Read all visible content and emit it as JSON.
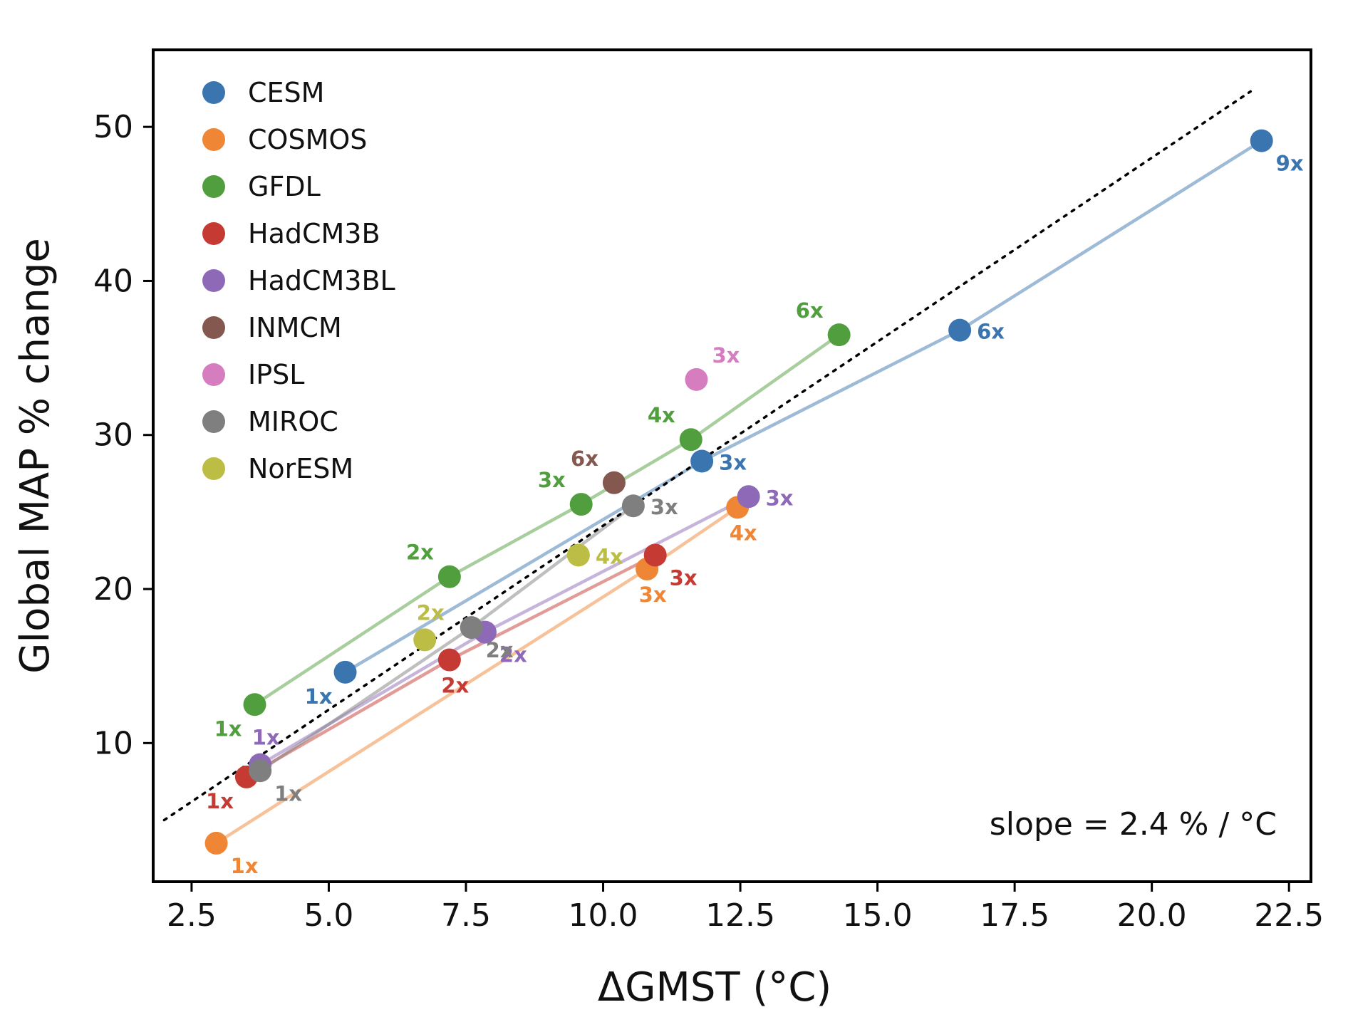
{
  "chart_data": {
    "type": "scatter",
    "xlabel": "ΔGMST (°C)",
    "ylabel": "Global MAP % change",
    "xlim": [
      1.8,
      22.9
    ],
    "ylim": [
      1.0,
      55.0
    ],
    "xticks": [
      2.5,
      5.0,
      7.5,
      10.0,
      12.5,
      15.0,
      17.5,
      20.0,
      22.5
    ],
    "xtick_labels": [
      "2.5",
      "5.0",
      "7.5",
      "10.0",
      "12.5",
      "15.0",
      "17.5",
      "20.0",
      "22.5"
    ],
    "yticks": [
      10,
      20,
      30,
      40,
      50
    ],
    "ytick_labels": [
      "10",
      "20",
      "30",
      "40",
      "50"
    ],
    "grid": false,
    "legend_position": "top-left",
    "annotation": "slope = 2.4 % / °C",
    "reference_line": {
      "style": "dotted",
      "color": "#000000",
      "slope": 2.4,
      "x": [
        2.0,
        21.8
      ],
      "y": [
        5.0,
        52.3
      ]
    },
    "series": [
      {
        "name": "CESM",
        "color": "#3b75af",
        "connected": true,
        "points": [
          {
            "x": 5.3,
            "y": 14.6,
            "label": "1x",
            "label_pos": "bl"
          },
          {
            "x": 11.8,
            "y": 28.3,
            "label": "3x",
            "label_pos": "r"
          },
          {
            "x": 16.5,
            "y": 36.8,
            "label": "6x",
            "label_pos": "r"
          },
          {
            "x": 22.0,
            "y": 49.1,
            "label": "9x",
            "label_pos": "br"
          }
        ]
      },
      {
        "name": "COSMOS",
        "color": "#ef8636",
        "connected": true,
        "points": [
          {
            "x": 2.95,
            "y": 3.5,
            "label": "1x",
            "label_pos": "br"
          },
          {
            "x": 10.8,
            "y": 21.3,
            "label": "3x",
            "label_pos": "b"
          },
          {
            "x": 12.45,
            "y": 25.3,
            "label": "4x",
            "label_pos": "b"
          }
        ]
      },
      {
        "name": "GFDL",
        "color": "#519e3e",
        "connected": true,
        "points": [
          {
            "x": 3.65,
            "y": 12.5,
            "label": "1x",
            "label_pos": "bl"
          },
          {
            "x": 7.2,
            "y": 20.8,
            "label": "2x",
            "label_pos": "tl"
          },
          {
            "x": 9.6,
            "y": 25.5,
            "label": "3x",
            "label_pos": "tl"
          },
          {
            "x": 11.6,
            "y": 29.7,
            "label": "4x",
            "label_pos": "tl"
          },
          {
            "x": 14.3,
            "y": 36.5,
            "label": "6x",
            "label_pos": "tl"
          }
        ]
      },
      {
        "name": "HadCM3B",
        "color": "#c53a32",
        "connected": true,
        "points": [
          {
            "x": 3.5,
            "y": 7.8,
            "label": "1x",
            "label_pos": "bl"
          },
          {
            "x": 7.2,
            "y": 15.4,
            "label": "2x",
            "label_pos": "b"
          },
          {
            "x": 10.95,
            "y": 22.2,
            "label": "3x",
            "label_pos": "br"
          }
        ]
      },
      {
        "name": "HadCM3BL",
        "color": "#8d69b8",
        "connected": true,
        "points": [
          {
            "x": 3.75,
            "y": 8.6,
            "label": "1x",
            "label_pos": "t"
          },
          {
            "x": 7.85,
            "y": 17.2,
            "label": "2x",
            "label_pos": "br"
          },
          {
            "x": 12.65,
            "y": 26.0,
            "label": "3x",
            "label_pos": "r"
          }
        ]
      },
      {
        "name": "INMCM",
        "color": "#84584e",
        "connected": false,
        "points": [
          {
            "x": 10.2,
            "y": 26.9,
            "label": "6x",
            "label_pos": "tl"
          }
        ]
      },
      {
        "name": "IPSL",
        "color": "#d57dbf",
        "connected": false,
        "points": [
          {
            "x": 11.7,
            "y": 33.6,
            "label": "3x",
            "label_pos": "tr"
          }
        ]
      },
      {
        "name": "MIROC",
        "color": "#7f7f7f",
        "connected": true,
        "points": [
          {
            "x": 3.75,
            "y": 8.2,
            "label": "1x",
            "label_pos": "br"
          },
          {
            "x": 7.6,
            "y": 17.5,
            "label": "2x",
            "label_pos": "br"
          },
          {
            "x": 10.55,
            "y": 25.4,
            "label": "3x",
            "label_pos": "r"
          }
        ]
      },
      {
        "name": "NorESM",
        "color": "#bcbd45",
        "connected": false,
        "points": [
          {
            "x": 6.75,
            "y": 16.7,
            "label": "2x",
            "label_pos": "t"
          },
          {
            "x": 9.55,
            "y": 22.2,
            "label": "4x",
            "label_pos": "r"
          }
        ]
      }
    ]
  }
}
